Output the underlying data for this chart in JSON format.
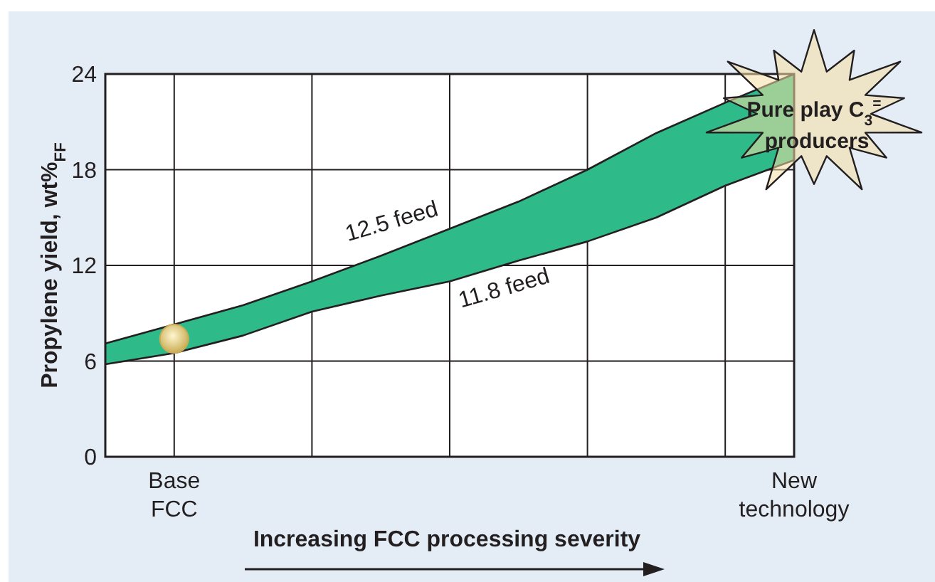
{
  "chart_data": {
    "type": "line",
    "xlabel": "Increasing FCC processing severity",
    "ylabel": "Propylene yield, wt%$_{FF}$",
    "categories": [
      null,
      "Base FCC",
      null,
      null,
      null,
      null,
      null,
      null,
      null,
      null,
      "New technology"
    ],
    "ylim": [
      0,
      24
    ],
    "yticks": [
      0,
      6,
      12,
      18,
      24
    ],
    "grid": true,
    "series": [
      {
        "name": "12.5 feed",
        "color": "#231f20",
        "values": [
          7.1,
          8.3,
          9.5,
          11.0,
          12.6,
          14.3,
          16.0,
          18.0,
          20.3,
          22.2,
          24
        ]
      },
      {
        "name": "11.8 feed",
        "color": "#231f20",
        "values": [
          5.8,
          6.5,
          7.6,
          9.1,
          10.1,
          11.0,
          12.3,
          13.5,
          15.0,
          17.0,
          18.6
        ],
        "lower": [
          5.8,
          6.5,
          7.6,
          9.1,
          10.1,
          11.0,
          12.3,
          13.5,
          15.0,
          17.0,
          18.6
        ],
        "upper": [
          7.1,
          8.3,
          9.5,
          11.0,
          12.6,
          14.3,
          16.0,
          18.0,
          20.3,
          22.2,
          24
        ]
      },
      {
        "type": "scatter",
        "color": "#c9ad55",
        "marker": "circle",
        "x": [
          "Base FCC"
        ],
        "values": [
          7.4
        ]
      }
    ],
    "annotations": [
      "Pure play C$_{3}$$^{=}$ producers"
    ]
  }
}
